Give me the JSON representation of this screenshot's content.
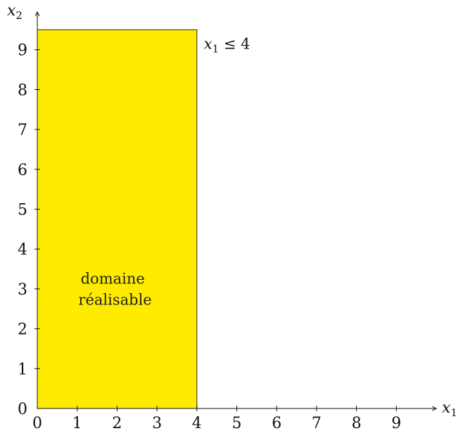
{
  "chart_data": {
    "type": "area",
    "x_axis": {
      "variable": "x",
      "subscript": "1",
      "range": [
        0,
        10
      ],
      "ticks": [
        0,
        1,
        2,
        3,
        4,
        5,
        6,
        7,
        8,
        9
      ]
    },
    "y_axis": {
      "variable": "x",
      "subscript": "2",
      "range": [
        0,
        9.6
      ],
      "ticks": [
        0,
        1,
        2,
        3,
        4,
        5,
        6,
        7,
        8,
        9
      ]
    },
    "feasible_region": {
      "x": [
        0,
        4
      ],
      "y": [
        0,
        9.5
      ],
      "color": "#FFEB00",
      "label_lines": [
        "domaine",
        "réalisable"
      ]
    },
    "constraint": {
      "label_var": "x",
      "label_sub": "1",
      "label_rest": " ≤ 4",
      "x": 4
    },
    "grid": false,
    "legend": "none"
  }
}
